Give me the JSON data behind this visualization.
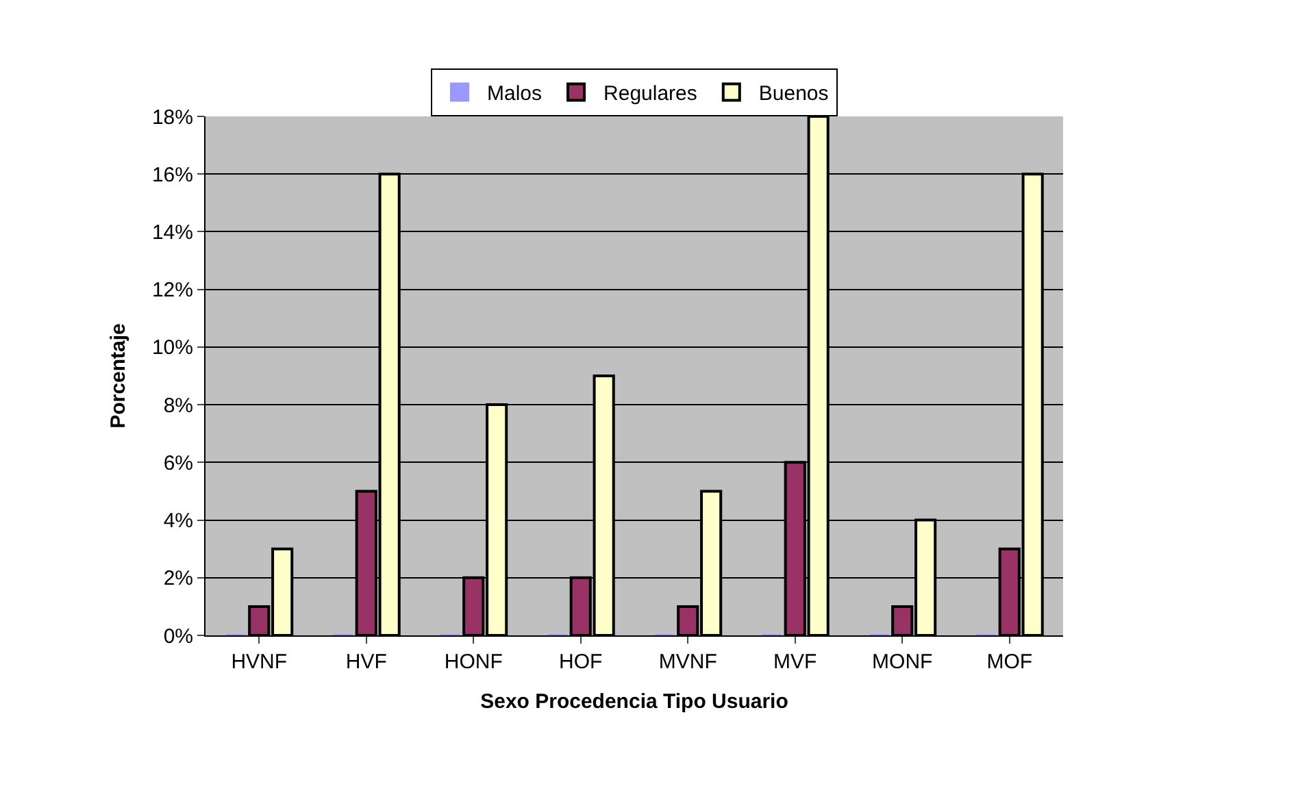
{
  "chart_data": {
    "type": "bar",
    "xlabel": "Sexo Procedencia Tipo Usuario",
    "ylabel": "Porcentaje",
    "categories": [
      "HVNF",
      "HVF",
      "HONF",
      "HOF",
      "MVNF",
      "MVF",
      "MONF",
      "MOF"
    ],
    "series": [
      {
        "name": "Malos",
        "color": "#9999ff",
        "values": [
          0,
          0,
          0,
          0,
          0,
          0,
          0,
          0
        ]
      },
      {
        "name": "Regulares",
        "color": "#993366",
        "values": [
          1,
          5,
          2,
          2,
          1,
          6,
          1,
          3
        ]
      },
      {
        "name": "Buenos",
        "color": "#ffffcc",
        "values": [
          3,
          16,
          8,
          9,
          5,
          18,
          4,
          16
        ]
      }
    ],
    "ylim": [
      0,
      18
    ],
    "yticks": [
      {
        "value": 0,
        "label": "0%"
      },
      {
        "value": 2,
        "label": "2%"
      },
      {
        "value": 4,
        "label": "4%"
      },
      {
        "value": 6,
        "label": "6%"
      },
      {
        "value": 8,
        "label": "8%"
      },
      {
        "value": 10,
        "label": "10%"
      },
      {
        "value": 12,
        "label": "12%"
      },
      {
        "value": 14,
        "label": "14%"
      },
      {
        "value": 16,
        "label": "16%"
      },
      {
        "value": 18,
        "label": "18%"
      }
    ],
    "grid": "y",
    "legend": "top"
  }
}
